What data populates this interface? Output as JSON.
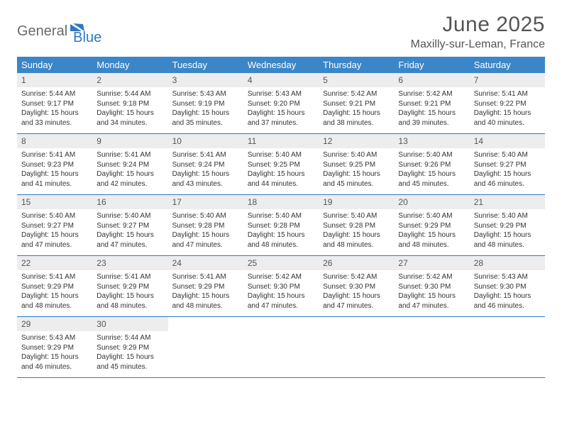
{
  "logo": {
    "general": "General",
    "blue": "Blue",
    "mark_color": "#2f78c4",
    "general_color": "#6a6a6a"
  },
  "title": {
    "month": "June 2025",
    "location": "Maxilly-sur-Leman, France"
  },
  "colors": {
    "header_bg": "#3b86c8",
    "header_fg": "#ffffff",
    "daynum_bg": "#ededed",
    "row_border": "#2f78c4",
    "body_text": "#333333"
  },
  "weekdays": [
    "Sunday",
    "Monday",
    "Tuesday",
    "Wednesday",
    "Thursday",
    "Friday",
    "Saturday"
  ],
  "weeks": [
    [
      {
        "n": "1",
        "sr": "Sunrise: 5:44 AM",
        "ss": "Sunset: 9:17 PM",
        "d1": "Daylight: 15 hours",
        "d2": "and 33 minutes."
      },
      {
        "n": "2",
        "sr": "Sunrise: 5:44 AM",
        "ss": "Sunset: 9:18 PM",
        "d1": "Daylight: 15 hours",
        "d2": "and 34 minutes."
      },
      {
        "n": "3",
        "sr": "Sunrise: 5:43 AM",
        "ss": "Sunset: 9:19 PM",
        "d1": "Daylight: 15 hours",
        "d2": "and 35 minutes."
      },
      {
        "n": "4",
        "sr": "Sunrise: 5:43 AM",
        "ss": "Sunset: 9:20 PM",
        "d1": "Daylight: 15 hours",
        "d2": "and 37 minutes."
      },
      {
        "n": "5",
        "sr": "Sunrise: 5:42 AM",
        "ss": "Sunset: 9:21 PM",
        "d1": "Daylight: 15 hours",
        "d2": "and 38 minutes."
      },
      {
        "n": "6",
        "sr": "Sunrise: 5:42 AM",
        "ss": "Sunset: 9:21 PM",
        "d1": "Daylight: 15 hours",
        "d2": "and 39 minutes."
      },
      {
        "n": "7",
        "sr": "Sunrise: 5:41 AM",
        "ss": "Sunset: 9:22 PM",
        "d1": "Daylight: 15 hours",
        "d2": "and 40 minutes."
      }
    ],
    [
      {
        "n": "8",
        "sr": "Sunrise: 5:41 AM",
        "ss": "Sunset: 9:23 PM",
        "d1": "Daylight: 15 hours",
        "d2": "and 41 minutes."
      },
      {
        "n": "9",
        "sr": "Sunrise: 5:41 AM",
        "ss": "Sunset: 9:24 PM",
        "d1": "Daylight: 15 hours",
        "d2": "and 42 minutes."
      },
      {
        "n": "10",
        "sr": "Sunrise: 5:41 AM",
        "ss": "Sunset: 9:24 PM",
        "d1": "Daylight: 15 hours",
        "d2": "and 43 minutes."
      },
      {
        "n": "11",
        "sr": "Sunrise: 5:40 AM",
        "ss": "Sunset: 9:25 PM",
        "d1": "Daylight: 15 hours",
        "d2": "and 44 minutes."
      },
      {
        "n": "12",
        "sr": "Sunrise: 5:40 AM",
        "ss": "Sunset: 9:25 PM",
        "d1": "Daylight: 15 hours",
        "d2": "and 45 minutes."
      },
      {
        "n": "13",
        "sr": "Sunrise: 5:40 AM",
        "ss": "Sunset: 9:26 PM",
        "d1": "Daylight: 15 hours",
        "d2": "and 45 minutes."
      },
      {
        "n": "14",
        "sr": "Sunrise: 5:40 AM",
        "ss": "Sunset: 9:27 PM",
        "d1": "Daylight: 15 hours",
        "d2": "and 46 minutes."
      }
    ],
    [
      {
        "n": "15",
        "sr": "Sunrise: 5:40 AM",
        "ss": "Sunset: 9:27 PM",
        "d1": "Daylight: 15 hours",
        "d2": "and 47 minutes."
      },
      {
        "n": "16",
        "sr": "Sunrise: 5:40 AM",
        "ss": "Sunset: 9:27 PM",
        "d1": "Daylight: 15 hours",
        "d2": "and 47 minutes."
      },
      {
        "n": "17",
        "sr": "Sunrise: 5:40 AM",
        "ss": "Sunset: 9:28 PM",
        "d1": "Daylight: 15 hours",
        "d2": "and 47 minutes."
      },
      {
        "n": "18",
        "sr": "Sunrise: 5:40 AM",
        "ss": "Sunset: 9:28 PM",
        "d1": "Daylight: 15 hours",
        "d2": "and 48 minutes."
      },
      {
        "n": "19",
        "sr": "Sunrise: 5:40 AM",
        "ss": "Sunset: 9:28 PM",
        "d1": "Daylight: 15 hours",
        "d2": "and 48 minutes."
      },
      {
        "n": "20",
        "sr": "Sunrise: 5:40 AM",
        "ss": "Sunset: 9:29 PM",
        "d1": "Daylight: 15 hours",
        "d2": "and 48 minutes."
      },
      {
        "n": "21",
        "sr": "Sunrise: 5:40 AM",
        "ss": "Sunset: 9:29 PM",
        "d1": "Daylight: 15 hours",
        "d2": "and 48 minutes."
      }
    ],
    [
      {
        "n": "22",
        "sr": "Sunrise: 5:41 AM",
        "ss": "Sunset: 9:29 PM",
        "d1": "Daylight: 15 hours",
        "d2": "and 48 minutes."
      },
      {
        "n": "23",
        "sr": "Sunrise: 5:41 AM",
        "ss": "Sunset: 9:29 PM",
        "d1": "Daylight: 15 hours",
        "d2": "and 48 minutes."
      },
      {
        "n": "24",
        "sr": "Sunrise: 5:41 AM",
        "ss": "Sunset: 9:29 PM",
        "d1": "Daylight: 15 hours",
        "d2": "and 48 minutes."
      },
      {
        "n": "25",
        "sr": "Sunrise: 5:42 AM",
        "ss": "Sunset: 9:30 PM",
        "d1": "Daylight: 15 hours",
        "d2": "and 47 minutes."
      },
      {
        "n": "26",
        "sr": "Sunrise: 5:42 AM",
        "ss": "Sunset: 9:30 PM",
        "d1": "Daylight: 15 hours",
        "d2": "and 47 minutes."
      },
      {
        "n": "27",
        "sr": "Sunrise: 5:42 AM",
        "ss": "Sunset: 9:30 PM",
        "d1": "Daylight: 15 hours",
        "d2": "and 47 minutes."
      },
      {
        "n": "28",
        "sr": "Sunrise: 5:43 AM",
        "ss": "Sunset: 9:30 PM",
        "d1": "Daylight: 15 hours",
        "d2": "and 46 minutes."
      }
    ],
    [
      {
        "n": "29",
        "sr": "Sunrise: 5:43 AM",
        "ss": "Sunset: 9:29 PM",
        "d1": "Daylight: 15 hours",
        "d2": "and 46 minutes."
      },
      {
        "n": "30",
        "sr": "Sunrise: 5:44 AM",
        "ss": "Sunset: 9:29 PM",
        "d1": "Daylight: 15 hours",
        "d2": "and 45 minutes."
      },
      {
        "empty": true
      },
      {
        "empty": true
      },
      {
        "empty": true
      },
      {
        "empty": true
      },
      {
        "empty": true
      }
    ]
  ]
}
